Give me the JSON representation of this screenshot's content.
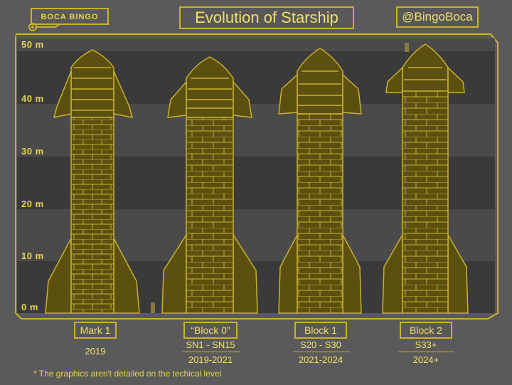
{
  "header": {
    "logo_text": "BOCA BINGO",
    "title": "Evolution of Starship",
    "handle": "@BingoBoca"
  },
  "axis": {
    "ticks": [
      "50 m",
      "40 m",
      "30 m",
      "20 m",
      "10 m",
      "0 m"
    ]
  },
  "rockets": [
    {
      "label": "Mark 1",
      "lines": [
        "2019"
      ]
    },
    {
      "label": "“Block 0”",
      "lines": [
        "SN1 - SN15",
        "2019-2021"
      ]
    },
    {
      "label": "Block 1",
      "lines": [
        "S20 - S30",
        "2021-2024"
      ]
    },
    {
      "label": "Block 2",
      "lines": [
        "S33+",
        "2024+"
      ]
    }
  ],
  "footnote": "* The graphics aren't detailed on the techical level",
  "colors": {
    "accent": "#c9b12c",
    "text": "#f0e06a",
    "background": "#5a5a5a",
    "band_dark": "#3a3a3a",
    "band_light": "#4a4a4a"
  }
}
